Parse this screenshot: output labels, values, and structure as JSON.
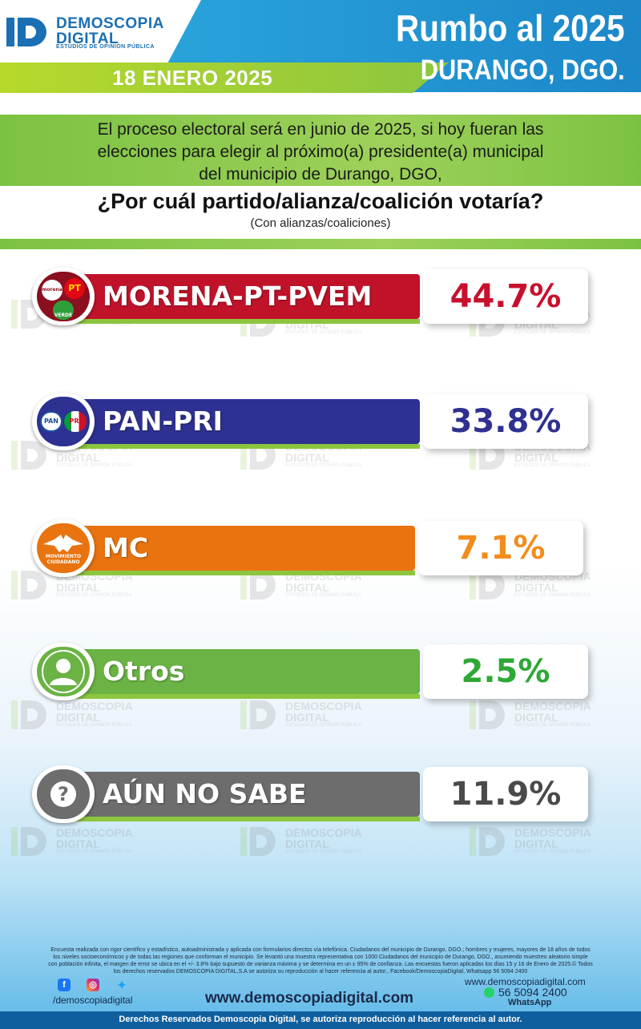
{
  "header": {
    "brand_name": "DEMOSCOPIA",
    "brand_name2": "DIGITAL",
    "brand_tagline": "ESTUDIOS DE OPINIÓN PÚBLICA",
    "date": "18 ENERO 2025",
    "title": "Rumbo al 2025",
    "location": "DURANGO, DGO."
  },
  "question": {
    "intro_line1": "El proceso electoral será en junio de 2025, si hoy fueran las",
    "intro_line2": "elecciones para elegir al próximo(a) presidente(a) municipal",
    "intro_line3": "del municipio de Durango, DGO,",
    "text": "¿Por cuál partido/alianza/coalición votaría?",
    "note": "(Con alianzas/coaliciones)"
  },
  "watermark": {
    "line1": "DEMOSCOPIA",
    "line2": "DIGITAL",
    "line3": "ESTUDIOS DE OPINIÓN PÚBLICA"
  },
  "badges": {
    "morena": "morena",
    "pt": "PT",
    "verde": "VERDE",
    "pan": "PAN",
    "pri": "PRI",
    "mc_line1": "MOVIMIENTO",
    "mc_line2": "CIUDADANO",
    "unknown": "?"
  },
  "chart_data": {
    "type": "bar",
    "categories": [
      "MORENA-PT-PVEM",
      "PAN-PRI",
      "MC",
      "Otros",
      "AÚN NO SABE"
    ],
    "values": [
      44.7,
      33.8,
      7.1,
      2.5,
      11.9
    ],
    "value_labels": [
      "44.7%",
      "33.8%",
      "7.1%",
      "2.5%",
      "11.9%"
    ],
    "colors": [
      "#c0132a",
      "#2e3191",
      "#e8730f",
      "#6ab344",
      "#6d6d6d"
    ],
    "value_colors": [
      "#c8102e",
      "#2e3191",
      "#f28c1c",
      "#2ea836",
      "#4a4a4a"
    ],
    "badge_icons": [
      "morena-pt-verde-logos-icon",
      "pan-pri-logos-icon",
      "movimiento-ciudadano-logo-icon",
      "user-silhouette-icon",
      "question-mark-icon"
    ],
    "title": "¿Por cuál partido/alianza/coalición votaría?",
    "xlabel": "",
    "ylabel": ""
  },
  "footer": {
    "disclaimer_line1": "Encuesta realizada con rigor científico y estadístico, autoadministrada y aplicada con formularios directos vía telefónica. Ciudadanos del municipio de Durango, DGO.; hombres y mujeres, mayores de 18 años de todos",
    "disclaimer_line2": "los niveles socioeconómicos y de todas las regiones que conforman el municipio. Se levantó una muestra representativa con 1000 Ciudadanos del municipio de Durango, DGO., asumiendo muestreo aleatorio simple",
    "disclaimer_line3": "con población infinita, el margen de error se ubica en el +/- 3.8% bajo supuesto de varianza máxima y se determina en un ± 95% de confianza. Las encuestas fueron aplicadas los días 15 y 16 de Enero de 2025.© Todos",
    "disclaimer_line4": "los derechos reservados DEMOSCOPIA DIGITAL,S.A se autoriza su reproducción al hacer referencia al autor., Facebook/DemoscopiaDigital, Whatsapp 56 5094 2400",
    "handle": "/demoscopiadigital",
    "website_main": "www.demoscopiadigital.com",
    "website_small": "www.demoscopiadigital.com",
    "phone": "56 5094 2400",
    "whatsapp_label": "WhatsApp",
    "rights": "Derechos Reservados Demoscopia Digital, se autoriza reproducción al hacer referencia al autor."
  }
}
